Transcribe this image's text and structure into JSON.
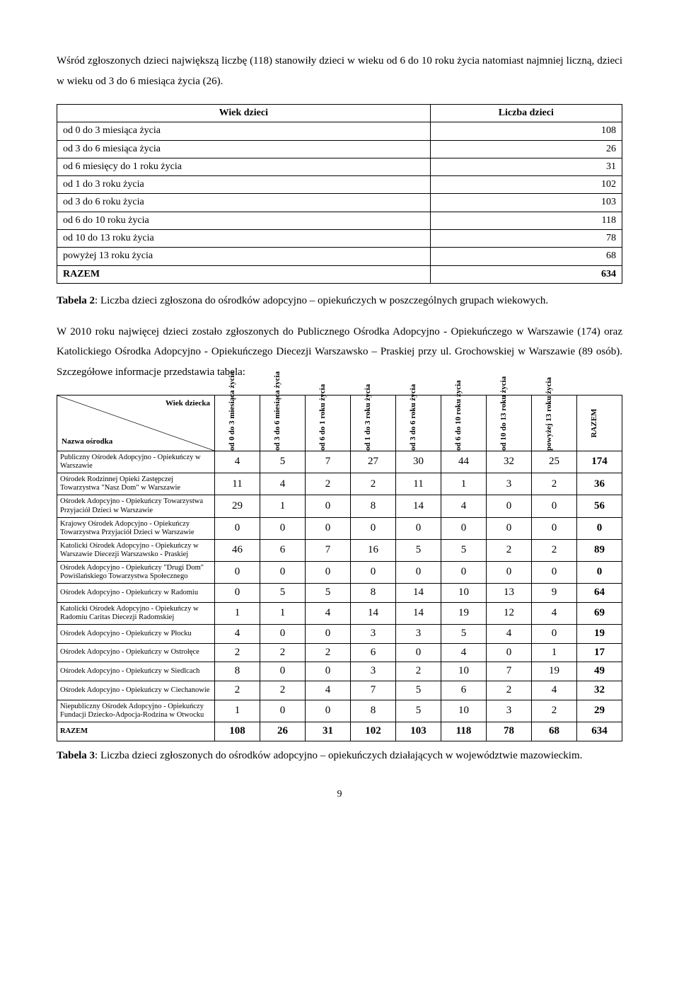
{
  "intro": "Wśród zgłoszonych dzieci największą liczbę (118) stanowiły dzieci w wieku od 6 do 10 roku życia natomiast najmniej liczną, dzieci w wieku od 3 do 6 miesiąca życia (26).",
  "wiek_table": {
    "header_left": "Wiek dzieci",
    "header_right": "Liczba dzieci",
    "rows": [
      {
        "label": "od 0 do 3 miesiąca życia",
        "value": "108"
      },
      {
        "label": "od 3 do 6 miesiąca życia",
        "value": "26"
      },
      {
        "label": "od 6 miesięcy do 1 roku życia",
        "value": "31"
      },
      {
        "label": "od 1 do 3 roku życia",
        "value": "102"
      },
      {
        "label": "od 3 do 6 roku życia",
        "value": "103"
      },
      {
        "label": "od 6 do 10 roku życia",
        "value": "118"
      },
      {
        "label": "od 10 do 13 roku życia",
        "value": "78"
      },
      {
        "label": "powyżej 13 roku życia",
        "value": "68"
      }
    ],
    "total_label": "RAZEM",
    "total_value": "634"
  },
  "caption2_lead": "Tabela 2",
  "caption2_rest": ": Liczba dzieci zgłoszona do ośrodków adopcyjno – opiekuńczych w poszczególnych grupach wiekowych.",
  "mid_para": "W 2010 roku najwięcej dzieci zostało zgłoszonych do Publicznego Ośrodka Adopcyjno - Opiekuńczego w Warszawie (174) oraz Katolickiego Ośrodka Adopcyjno - Opiekuńczego Diecezji Warszawsko – Praskiej przy ul. Grochowskiej w Warszawie (89 osób). Szczegółowe informacje przedstawia tabela:",
  "detail_table": {
    "corner_top": "Wiek dziecka",
    "corner_bottom": "Nazwa ośrodka",
    "age_headers": [
      "od 0 do 3 miesiąca życia",
      "od 3 do 6 miesiąca życia",
      "od 6 do 1 roku życia",
      "od 1 do 3 roku życia",
      "od 3 do 6 roku życia",
      "od 6 do 10 roku życia",
      "od 10 do 13 roku życia",
      "powyżej 13 roku życia"
    ],
    "razem_header": "RAZEM",
    "rows": [
      {
        "name": "Publiczny Ośrodek Adopcyjno - Opiekuńczy w Warszawie",
        "v": [
          "4",
          "5",
          "7",
          "27",
          "30",
          "44",
          "32",
          "25",
          "174"
        ]
      },
      {
        "name": "Ośrodek Rodzinnej Opieki Zastępczej Towarzystwa \"Nasz Dom\" w Warszawie",
        "v": [
          "11",
          "4",
          "2",
          "2",
          "11",
          "1",
          "3",
          "2",
          "36"
        ]
      },
      {
        "name": "Ośrodek Adopcyjno - Opiekuńczy Towarzystwa Przyjaciół Dzieci w Warszawie",
        "v": [
          "29",
          "1",
          "0",
          "8",
          "14",
          "4",
          "0",
          "0",
          "56"
        ]
      },
      {
        "name": "Krajowy Ośrodek Adopcyjno - Opiekuńczy Towarzystwa Przyjaciół Dzieci w Warszawie",
        "v": [
          "0",
          "0",
          "0",
          "0",
          "0",
          "0",
          "0",
          "0",
          "0"
        ]
      },
      {
        "name": "Katolicki Ośrodek Adopcyjno - Opiekuńczy w Warszawie Diecezji Warszawsko - Praskiej",
        "v": [
          "46",
          "6",
          "7",
          "16",
          "5",
          "5",
          "2",
          "2",
          "89"
        ]
      },
      {
        "name": "Ośrodek Adopcyjno - Opiekuńczy \"Drugi Dom\" Powiślańskiego Towarzystwa Społecznego",
        "v": [
          "0",
          "0",
          "0",
          "0",
          "0",
          "0",
          "0",
          "0",
          "0"
        ]
      },
      {
        "name": "Ośrodek Adopcyjno - Opiekuńczy w Radomiu",
        "v": [
          "0",
          "5",
          "5",
          "8",
          "14",
          "10",
          "13",
          "9",
          "64"
        ]
      },
      {
        "name": "Katolicki Ośrodek Adopcyjno - Opiekuńczy w Radomiu Caritas Diecezji Radomskiej",
        "v": [
          "1",
          "1",
          "4",
          "14",
          "14",
          "19",
          "12",
          "4",
          "69"
        ]
      },
      {
        "name": "Ośrodek Adopcyjno - Opiekuńczy w Płocku",
        "v": [
          "4",
          "0",
          "0",
          "3",
          "3",
          "5",
          "4",
          "0",
          "19"
        ]
      },
      {
        "name": "Ośrodek Adopcyjno - Opiekuńczy w Ostrołęce",
        "v": [
          "2",
          "2",
          "2",
          "6",
          "0",
          "4",
          "0",
          "1",
          "17"
        ]
      },
      {
        "name": "Ośrodek Adopcyjno - Opiekuńczy w Siedlcach",
        "v": [
          "8",
          "0",
          "0",
          "3",
          "2",
          "10",
          "7",
          "19",
          "49"
        ]
      },
      {
        "name": "Ośrodek Adopcyjno - Opiekuńczy w Ciechanowie",
        "v": [
          "2",
          "2",
          "4",
          "7",
          "5",
          "6",
          "2",
          "4",
          "32"
        ]
      },
      {
        "name": "Niepubliczny Ośrodek Adopcyjno - Opiekuńczy Fundacji Dziecko-Adpocja-Rodzina w Otwocku",
        "v": [
          "1",
          "0",
          "0",
          "8",
          "5",
          "10",
          "3",
          "2",
          "29"
        ]
      }
    ],
    "total_label": "RAZEM",
    "total_values": [
      "108",
      "26",
      "31",
      "102",
      "103",
      "118",
      "78",
      "68",
      "634"
    ]
  },
  "caption3_lead": "Tabela 3",
  "caption3_rest": ": Liczba dzieci zgłoszonych do ośrodków adopcyjno – opiekuńczych działających w województwie mazowieckim.",
  "page_number": "9"
}
